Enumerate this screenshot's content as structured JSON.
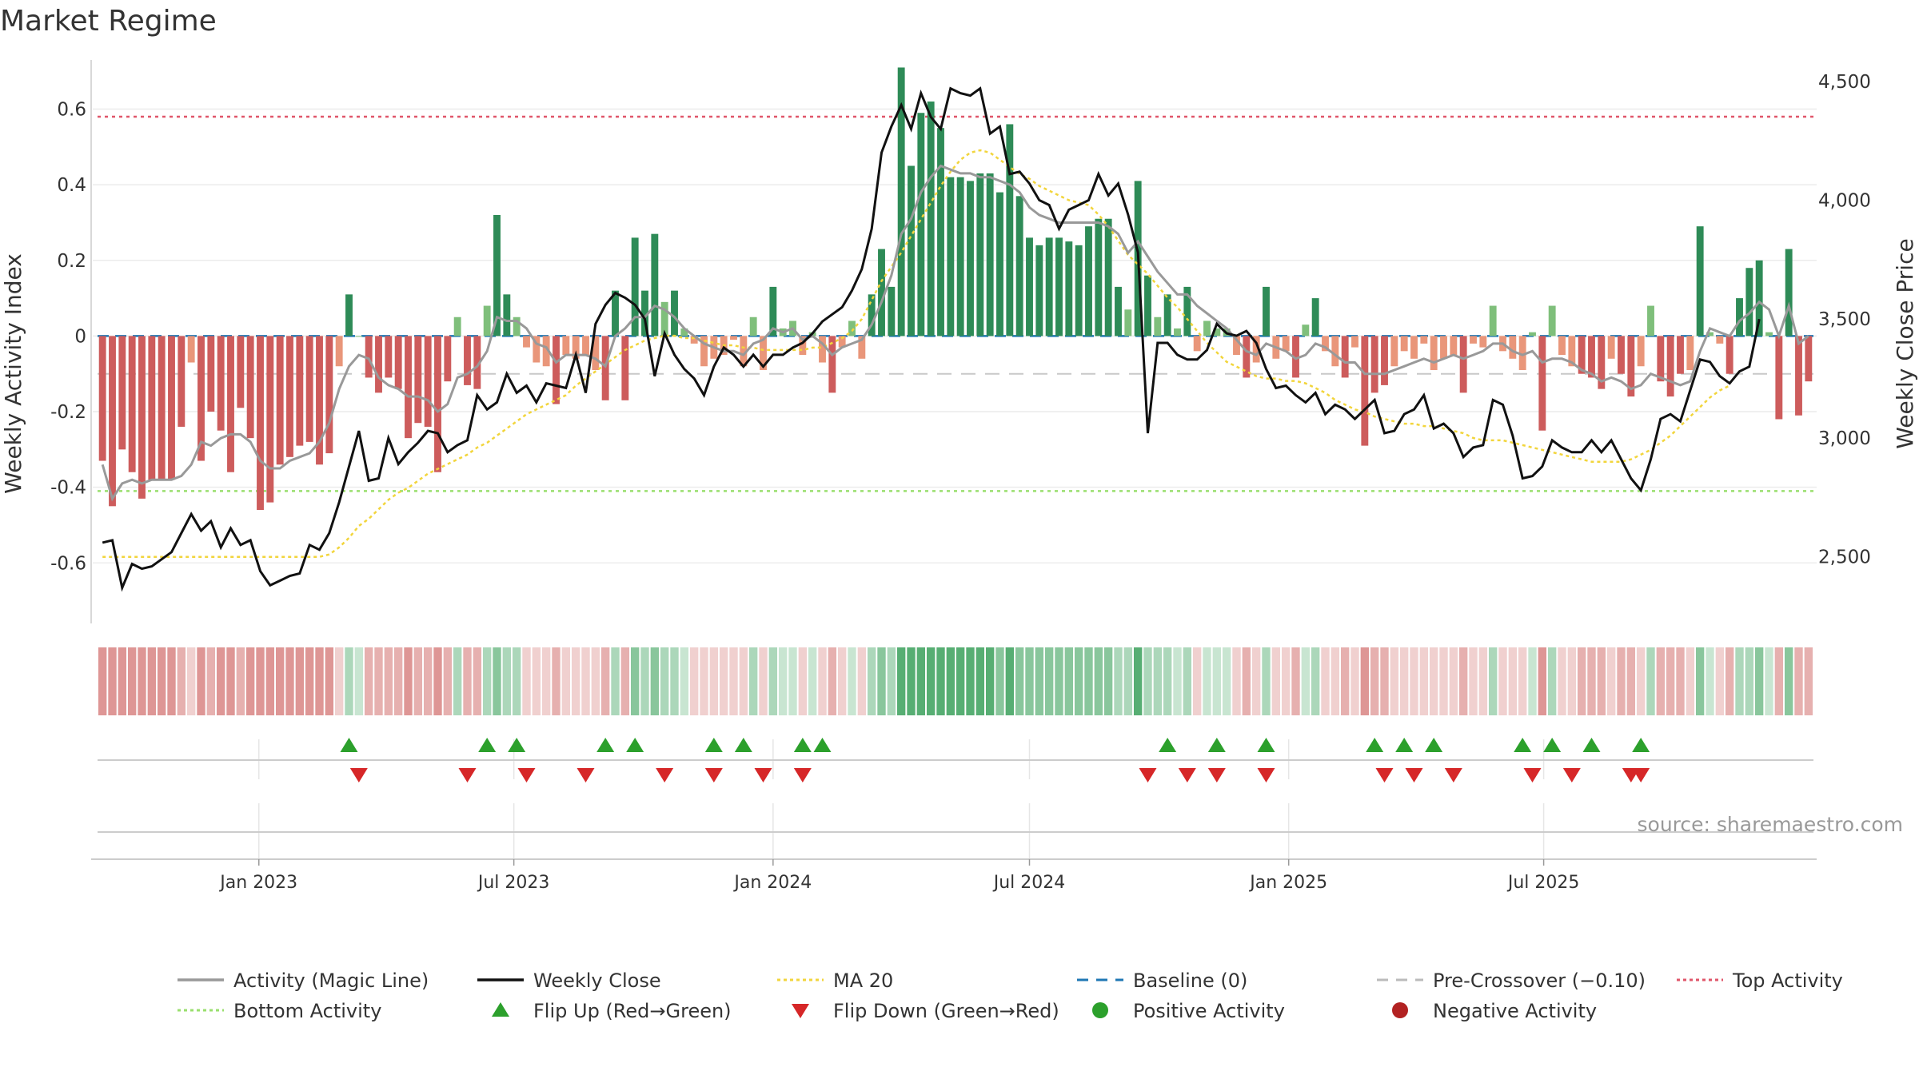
{
  "chart_data": {
    "type": "bar",
    "title": "Market Regime",
    "ylabel": "Weekly Activity Index",
    "y2label": "Weekly Close Price",
    "ylim": [
      -0.76,
      0.73
    ],
    "y2lim": [
      2220,
      4590
    ],
    "y_ticks": [
      "-0.6",
      "-0.4",
      "-0.2",
      "0",
      "0.2",
      "0.4",
      "0.6"
    ],
    "y2_ticks": [
      "2,500",
      "3,000",
      "3,500",
      "4,000",
      "4,500"
    ],
    "x_ticks": [
      "Jan 2023",
      "Jul 2023",
      "Jan 2024",
      "Jul 2024",
      "Jan 2025",
      "Jul 2025"
    ],
    "x_start": "2022-09-12",
    "x_step_days": 7,
    "reference_lines": {
      "top": 0.58,
      "bottom": -0.41,
      "pre_crossover": -0.1,
      "baseline": 0
    },
    "activity": [
      -0.33,
      -0.45,
      -0.3,
      -0.36,
      -0.43,
      -0.38,
      -0.38,
      -0.38,
      -0.24,
      -0.07,
      -0.33,
      -0.2,
      -0.25,
      -0.36,
      -0.19,
      -0.27,
      -0.46,
      -0.44,
      -0.34,
      -0.32,
      -0.29,
      -0.28,
      -0.34,
      -0.31,
      -0.08,
      0.11,
      0.0,
      -0.11,
      -0.15,
      -0.11,
      -0.14,
      -0.27,
      -0.23,
      -0.24,
      -0.36,
      -0.12,
      0.05,
      -0.13,
      -0.14,
      0.08,
      0.32,
      0.11,
      0.05,
      -0.03,
      -0.07,
      -0.08,
      -0.18,
      -0.05,
      -0.06,
      -0.05,
      -0.09,
      -0.17,
      0.12,
      -0.17,
      0.26,
      0.12,
      0.27,
      0.09,
      0.12,
      0.02,
      -0.02,
      -0.08,
      -0.06,
      -0.05,
      -0.01,
      -0.08,
      0.05,
      -0.09,
      0.13,
      0.02,
      0.04,
      -0.05,
      0.01,
      -0.07,
      -0.15,
      -0.03,
      0.04,
      -0.06,
      0.11,
      0.23,
      0.13,
      0.71,
      0.45,
      0.59,
      0.62,
      0.55,
      0.42,
      0.42,
      0.41,
      0.43,
      0.43,
      0.38,
      0.56,
      0.37,
      0.26,
      0.24,
      0.26,
      0.26,
      0.25,
      0.24,
      0.29,
      0.31,
      0.31,
      0.13,
      0.07,
      0.41,
      0.16,
      0.05,
      0.11,
      0.02,
      0.13,
      -0.04,
      0.04,
      0.02,
      0.02,
      -0.05,
      -0.11,
      -0.07,
      0.13,
      -0.06,
      -0.04,
      -0.11,
      0.03,
      0.1,
      -0.04,
      -0.08,
      -0.11,
      -0.03,
      -0.29,
      -0.15,
      -0.13,
      -0.08,
      -0.04,
      -0.06,
      -0.02,
      -0.09,
      -0.06,
      -0.05,
      -0.15,
      -0.02,
      -0.03,
      0.08,
      -0.04,
      -0.06,
      -0.09,
      0.01,
      -0.25,
      0.08,
      -0.05,
      -0.08,
      -0.1,
      -0.11,
      -0.14,
      -0.06,
      -0.1,
      -0.16,
      -0.08,
      0.08,
      -0.12,
      -0.16,
      -0.1,
      -0.09,
      0.29,
      0.01,
      -0.02,
      -0.1,
      0.1,
      0.18,
      0.2,
      0.01,
      -0.22,
      0.23,
      -0.21,
      -0.12
    ],
    "magic_line": [
      -0.34,
      -0.43,
      -0.39,
      -0.38,
      -0.39,
      -0.38,
      -0.38,
      -0.38,
      -0.37,
      -0.34,
      -0.28,
      -0.29,
      -0.27,
      -0.26,
      -0.26,
      -0.28,
      -0.33,
      -0.35,
      -0.35,
      -0.33,
      -0.32,
      -0.31,
      -0.28,
      -0.23,
      -0.14,
      -0.08,
      -0.05,
      -0.06,
      -0.11,
      -0.13,
      -0.14,
      -0.16,
      -0.16,
      -0.17,
      -0.2,
      -0.18,
      -0.11,
      -0.1,
      -0.08,
      -0.04,
      0.05,
      0.04,
      0.04,
      0.02,
      -0.02,
      -0.03,
      -0.07,
      -0.05,
      -0.05,
      -0.05,
      -0.06,
      -0.08,
      0.0,
      0.02,
      0.05,
      0.05,
      0.08,
      0.07,
      0.05,
      0.02,
      0.0,
      -0.02,
      -0.03,
      -0.04,
      -0.04,
      -0.05,
      -0.02,
      -0.01,
      0.02,
      0.01,
      0.02,
      -0.01,
      0.0,
      -0.02,
      -0.05,
      -0.03,
      -0.02,
      -0.01,
      0.03,
      0.09,
      0.16,
      0.27,
      0.31,
      0.38,
      0.42,
      0.45,
      0.44,
      0.43,
      0.43,
      0.42,
      0.42,
      0.41,
      0.4,
      0.38,
      0.34,
      0.32,
      0.31,
      0.3,
      0.3,
      0.3,
      0.3,
      0.3,
      0.29,
      0.27,
      0.22,
      0.25,
      0.21,
      0.17,
      0.14,
      0.11,
      0.11,
      0.08,
      0.06,
      0.04,
      0.02,
      -0.01,
      -0.04,
      -0.05,
      -0.02,
      -0.03,
      -0.04,
      -0.06,
      -0.05,
      -0.02,
      -0.03,
      -0.05,
      -0.07,
      -0.07,
      -0.1,
      -0.1,
      -0.1,
      -0.09,
      -0.08,
      -0.07,
      -0.06,
      -0.07,
      -0.06,
      -0.05,
      -0.06,
      -0.05,
      -0.04,
      -0.02,
      -0.02,
      -0.04,
      -0.05,
      -0.04,
      -0.07,
      -0.06,
      -0.06,
      -0.07,
      -0.09,
      -0.1,
      -0.12,
      -0.11,
      -0.12,
      -0.14,
      -0.13,
      -0.1,
      -0.11,
      -0.12,
      -0.13,
      -0.12,
      -0.04,
      0.02,
      0.01,
      0.0,
      0.04,
      0.06,
      0.09,
      0.07,
      0.0,
      0.08,
      -0.02,
      0.0
    ],
    "weekly_close": [
      2560,
      2570,
      2370,
      2470,
      2450,
      2460,
      2490,
      2520,
      2600,
      2680,
      2610,
      2650,
      2540,
      2620,
      2550,
      2570,
      2440,
      2380,
      2400,
      2420,
      2430,
      2550,
      2530,
      2600,
      2730,
      2880,
      3030,
      2820,
      2830,
      3000,
      2890,
      2940,
      2980,
      3030,
      3020,
      2940,
      2970,
      2990,
      3180,
      3120,
      3150,
      3270,
      3190,
      3220,
      3150,
      3230,
      3220,
      3210,
      3350,
      3190,
      3480,
      3560,
      3610,
      3590,
      3560,
      3500,
      3260,
      3440,
      3350,
      3290,
      3250,
      3180,
      3300,
      3380,
      3350,
      3300,
      3350,
      3300,
      3350,
      3350,
      3380,
      3400,
      3440,
      3490,
      3520,
      3550,
      3620,
      3710,
      3880,
      4200,
      4310,
      4400,
      4300,
      4450,
      4350,
      4300,
      4470,
      4450,
      4440,
      4470,
      4280,
      4310,
      4110,
      4120,
      4070,
      4000,
      3980,
      3880,
      3960,
      3980,
      4000,
      4110,
      4020,
      4070,
      3940,
      3780,
      3020,
      3400,
      3400,
      3350,
      3330,
      3330,
      3370,
      3480,
      3440,
      3430,
      3450,
      3400,
      3290,
      3210,
      3220,
      3180,
      3150,
      3190,
      3100,
      3140,
      3120,
      3080,
      3120,
      3160,
      3020,
      3030,
      3100,
      3120,
      3180,
      3040,
      3060,
      3020,
      2920,
      2960,
      2970,
      3160,
      3140,
      3010,
      2830,
      2840,
      2880,
      2990,
      2960,
      2940,
      2940,
      2990,
      2940,
      2990,
      2910,
      2830,
      2780,
      2910,
      3080,
      3100,
      3070,
      3200,
      3330,
      3320,
      3260,
      3230,
      3280,
      3300,
      3500
    ],
    "ma20": [
      2500,
      2500,
      2500,
      2500,
      2500,
      2500,
      2500,
      2500,
      2500,
      2500,
      2500,
      2500,
      2500,
      2500,
      2500,
      2500,
      2500,
      2500,
      2500,
      2500,
      2500,
      2500,
      2500,
      2510,
      2540,
      2580,
      2630,
      2660,
      2700,
      2740,
      2770,
      2790,
      2820,
      2850,
      2870,
      2890,
      2910,
      2930,
      2960,
      2980,
      3010,
      3040,
      3070,
      3100,
      3120,
      3140,
      3160,
      3180,
      3220,
      3250,
      3280,
      3310,
      3340,
      3370,
      3390,
      3410,
      3420,
      3430,
      3430,
      3420,
      3420,
      3410,
      3400,
      3390,
      3390,
      3380,
      3380,
      3370,
      3370,
      3370,
      3370,
      3370,
      3380,
      3380,
      3400,
      3420,
      3450,
      3500,
      3580,
      3660,
      3720,
      3780,
      3850,
      3920,
      3990,
      4060,
      4120,
      4170,
      4200,
      4210,
      4200,
      4170,
      4140,
      4110,
      4090,
      4060,
      4040,
      4020,
      4000,
      3990,
      3980,
      3940,
      3890,
      3830,
      3770,
      3730,
      3690,
      3640,
      3590,
      3550,
      3500,
      3450,
      3400,
      3360,
      3320,
      3300,
      3280,
      3260,
      3250,
      3250,
      3240,
      3240,
      3230,
      3210,
      3190,
      3160,
      3140,
      3120,
      3110,
      3090,
      3080,
      3070,
      3060,
      3060,
      3050,
      3050,
      3040,
      3030,
      3020,
      3000,
      2990,
      2990,
      2990,
      2980,
      2970,
      2960,
      2950,
      2940,
      2930,
      2920,
      2910,
      2900,
      2900,
      2900,
      2900,
      2910,
      2930,
      2950,
      2980,
      3010,
      3050,
      3090,
      3130,
      3170,
      3200,
      3220
    ],
    "flip_up": [
      25,
      39,
      42,
      51,
      54,
      62,
      65,
      71,
      73,
      108,
      113,
      118,
      129,
      132,
      135,
      144,
      147,
      151,
      156
    ],
    "flip_down": [
      26,
      37,
      43,
      49,
      57,
      62,
      67,
      71,
      106,
      110,
      113,
      118,
      130,
      133,
      137,
      145,
      149,
      155,
      156
    ],
    "legend": [
      {
        "label": "Activity (Magic Line)",
        "kind": "line",
        "color": "#999999"
      },
      {
        "label": "Weekly Close",
        "kind": "line",
        "color": "#111111"
      },
      {
        "label": "MA 20",
        "kind": "dotted",
        "color": "#f2d53c"
      },
      {
        "label": "Baseline (0)",
        "kind": "dashed",
        "color": "#1f77b4"
      },
      {
        "label": "Pre-Crossover (−0.10)",
        "kind": "dashed",
        "color": "#bbbbbb"
      },
      {
        "label": "Top Activity",
        "kind": "dotted",
        "color": "#e0566a"
      },
      {
        "label": "Bottom Activity",
        "kind": "dotted",
        "color": "#9adf6e"
      },
      {
        "label": "Flip Up (Red→Green)",
        "kind": "tri-up",
        "color": "#2ca02c"
      },
      {
        "label": "Flip Down (Green→Red)",
        "kind": "tri-down",
        "color": "#d62728"
      },
      {
        "label": "Positive Activity",
        "kind": "dot",
        "color": "#2ca02c"
      },
      {
        "label": "Negative Activity",
        "kind": "dot",
        "color": "#b22222"
      }
    ]
  },
  "source_text": "source: sharemaestro.com",
  "colors": {
    "pos_strong": "#2e8b57",
    "pos_weak": "#7fbf7b",
    "neg_strong": "#cd5c5c",
    "neg_weak": "#e9967a"
  }
}
